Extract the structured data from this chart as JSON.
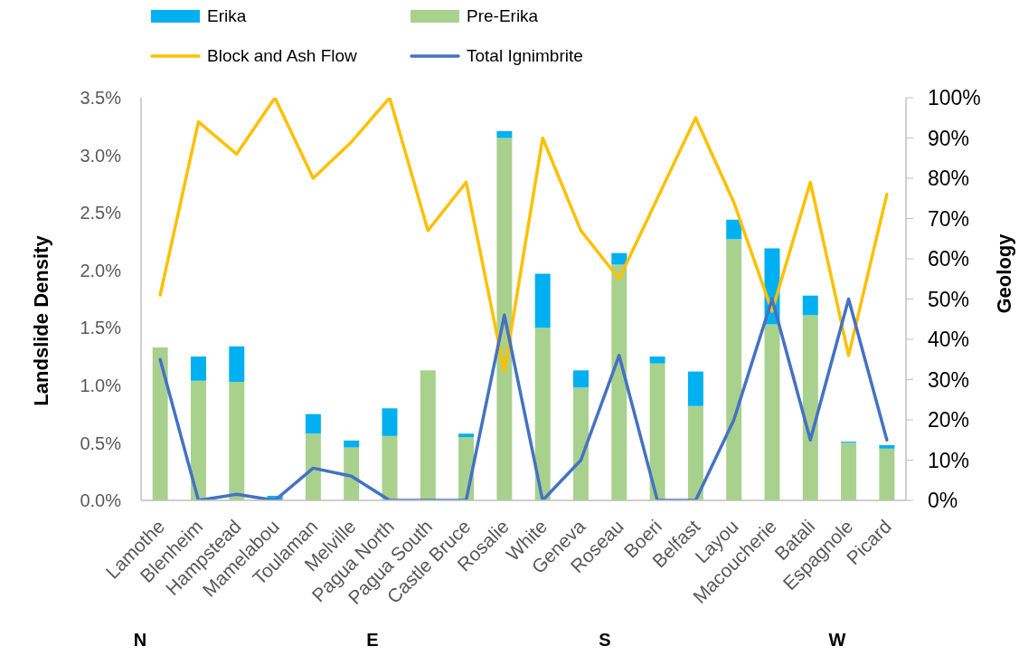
{
  "chart_data": {
    "type": "bar",
    "stacked": true,
    "ylabel": "Landslide Density",
    "y2label": "Geology",
    "categories": [
      "Lamothe",
      "Blenheim",
      "Hampstead",
      "Mamelabou",
      "Toulaman",
      "Melville",
      "Pagua North",
      "Pagua South",
      "Castle Bruce",
      "Rosalie",
      "White",
      "Geneva",
      "Roseau",
      "Boeri",
      "Belfast",
      "Layou",
      "Macoucherie",
      "Batali",
      "Espagnole",
      "Picard"
    ],
    "series": [
      {
        "name": "Pre-Erika",
        "color": "#a9d18e",
        "values": [
          1.33,
          1.04,
          1.03,
          0,
          0.58,
          0.46,
          0.56,
          1.13,
          0.55,
          3.15,
          1.5,
          0.98,
          2.05,
          1.19,
          0.82,
          2.27,
          1.53,
          1.61,
          0.5,
          0.45
        ]
      },
      {
        "name": "Erika",
        "color": "#00b0f0",
        "values": [
          0,
          0.21,
          0.31,
          0.04,
          0.17,
          0.06,
          0.24,
          0,
          0.03,
          0.06,
          0.47,
          0.15,
          0.1,
          0.06,
          0.3,
          0.17,
          0.66,
          0.17,
          0.01,
          0.03
        ]
      },
      {
        "name": "Block and Ash Flow",
        "type": "line",
        "axis": "y2",
        "color": "#ffc000",
        "values": [
          51,
          94,
          86,
          100,
          80,
          89,
          100,
          67,
          79,
          32,
          90,
          67,
          55,
          75,
          95,
          74,
          47,
          79,
          36,
          76
        ]
      },
      {
        "name": "Total Ignimbrite",
        "type": "line",
        "axis": "y2",
        "color": "#4472c4",
        "values": [
          35,
          0,
          1.5,
          0,
          8,
          6,
          0,
          0,
          0,
          46,
          0,
          10,
          36,
          0,
          0,
          20,
          50,
          15,
          50,
          15
        ]
      }
    ],
    "ylim": [
      0,
      3.5
    ],
    "yticks": [
      {
        "value": 0,
        "label": "0.0%"
      },
      {
        "value": 0.5,
        "label": "0.5%"
      },
      {
        "value": 1,
        "label": "1.0%"
      },
      {
        "value": 1.5,
        "label": "1.5%"
      },
      {
        "value": 2,
        "label": "2.0%"
      },
      {
        "value": 2.5,
        "label": "2.5%"
      },
      {
        "value": 3,
        "label": "3.0%"
      },
      {
        "value": 3.5,
        "label": "3.5%"
      }
    ],
    "y2lim": [
      0,
      100
    ],
    "y2ticks": [
      {
        "value": 0,
        "label": "0%"
      },
      {
        "value": 10,
        "label": "10%"
      },
      {
        "value": 20,
        "label": "20%"
      },
      {
        "value": 30,
        "label": "30%"
      },
      {
        "value": 40,
        "label": "40%"
      },
      {
        "value": 50,
        "label": "50%"
      },
      {
        "value": 60,
        "label": "60%"
      },
      {
        "value": 70,
        "label": "70%"
      },
      {
        "value": 80,
        "label": "80%"
      },
      {
        "value": 90,
        "label": "90%"
      },
      {
        "value": 100,
        "label": "100%"
      }
    ],
    "legend": "top",
    "marker": "none",
    "line_style": "solid",
    "annotations": [
      "N",
      "E",
      "S",
      "W"
    ]
  }
}
